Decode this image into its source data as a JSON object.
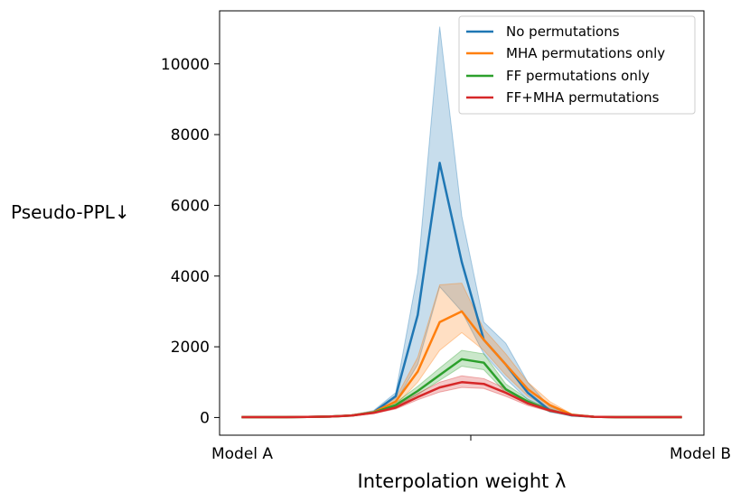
{
  "chart_data": {
    "type": "line",
    "title": "",
    "xlabel": "Interpolation weight λ",
    "ylabel": "Pseudo-PPL↓",
    "x_tick_labels": [
      "Model A",
      "Model B"
    ],
    "x": [
      0.0,
      0.05,
      0.1,
      0.15,
      0.2,
      0.25,
      0.3,
      0.35,
      0.4,
      0.45,
      0.5,
      0.55,
      0.6,
      0.65,
      0.7,
      0.75,
      0.8,
      0.85,
      0.9,
      0.95,
      1.0
    ],
    "xlim": [
      -0.05,
      1.05
    ],
    "ylim": [
      -500,
      11500
    ],
    "y_ticks": [
      0,
      2000,
      4000,
      6000,
      8000,
      10000
    ],
    "legend": {
      "location": "upper right"
    },
    "series": [
      {
        "name": "No permutations",
        "color": "#1f77b4",
        "values": [
          10,
          10,
          10,
          15,
          25,
          60,
          150,
          600,
          2900,
          7200,
          4400,
          2200,
          1500,
          700,
          200,
          60,
          20,
          10,
          10,
          10,
          10
        ],
        "lower": [
          10,
          10,
          10,
          15,
          25,
          55,
          130,
          450,
          1500,
          3700,
          3000,
          1800,
          1100,
          500,
          150,
          50,
          15,
          10,
          10,
          10,
          10
        ],
        "upper": [
          10,
          10,
          10,
          15,
          25,
          70,
          200,
          700,
          4100,
          11050,
          5700,
          2700,
          2100,
          1000,
          300,
          80,
          25,
          10,
          10,
          10,
          10
        ]
      },
      {
        "name": "MHA permutations only",
        "color": "#ff7f0e",
        "values": [
          10,
          10,
          10,
          15,
          25,
          60,
          150,
          450,
          1300,
          2700,
          3000,
          2200,
          1500,
          800,
          350,
          80,
          20,
          10,
          10,
          10,
          10
        ],
        "lower": [
          10,
          10,
          10,
          15,
          25,
          55,
          130,
          350,
          1000,
          1900,
          2400,
          1900,
          1200,
          600,
          250,
          60,
          15,
          10,
          10,
          10,
          10
        ],
        "upper": [
          10,
          10,
          10,
          15,
          25,
          70,
          170,
          550,
          1700,
          3750,
          3800,
          2500,
          1800,
          1000,
          450,
          100,
          25,
          10,
          10,
          10,
          10
        ]
      },
      {
        "name": "FF permutations only",
        "color": "#2ca02c",
        "values": [
          10,
          10,
          10,
          15,
          25,
          55,
          140,
          350,
          750,
          1200,
          1650,
          1550,
          800,
          450,
          200,
          70,
          20,
          10,
          10,
          10,
          10
        ],
        "lower": [
          10,
          10,
          10,
          15,
          25,
          50,
          120,
          300,
          650,
          1050,
          1450,
          1350,
          700,
          380,
          170,
          60,
          15,
          10,
          10,
          10,
          10
        ],
        "upper": [
          10,
          10,
          10,
          15,
          25,
          60,
          160,
          420,
          880,
          1400,
          1900,
          1800,
          950,
          520,
          240,
          80,
          25,
          10,
          10,
          10,
          10
        ]
      },
      {
        "name": "FF+MHA permutations",
        "color": "#d62728",
        "values": [
          10,
          10,
          10,
          15,
          25,
          55,
          130,
          280,
          580,
          850,
          1000,
          950,
          700,
          400,
          200,
          70,
          20,
          10,
          10,
          10,
          10
        ],
        "lower": [
          10,
          10,
          10,
          15,
          25,
          50,
          110,
          240,
          500,
          720,
          850,
          820,
          600,
          340,
          170,
          60,
          15,
          10,
          10,
          10,
          10
        ],
        "upper": [
          10,
          10,
          10,
          15,
          25,
          60,
          150,
          320,
          680,
          1000,
          1180,
          1100,
          820,
          470,
          240,
          80,
          25,
          10,
          10,
          10,
          10
        ]
      }
    ]
  }
}
